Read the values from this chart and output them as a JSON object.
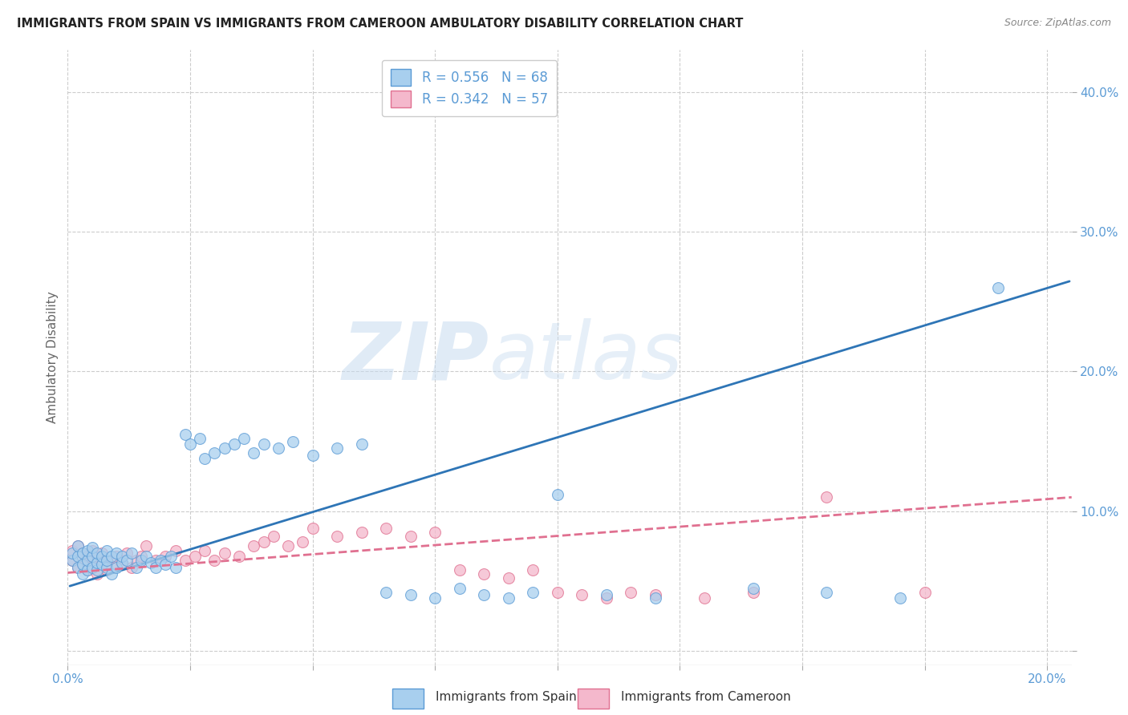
{
  "title": "IMMIGRANTS FROM SPAIN VS IMMIGRANTS FROM CAMEROON AMBULATORY DISABILITY CORRELATION CHART",
  "source": "Source: ZipAtlas.com",
  "ylabel": "Ambulatory Disability",
  "xlim": [
    0.0,
    0.205
  ],
  "ylim": [
    -0.01,
    0.43
  ],
  "xticks": [
    0.0,
    0.025,
    0.05,
    0.075,
    0.1,
    0.125,
    0.15,
    0.175,
    0.2
  ],
  "yticks_right": [
    0.0,
    0.1,
    0.2,
    0.3,
    0.4
  ],
  "ytick_labels_right": [
    "",
    "10.0%",
    "20.0%",
    "30.0%",
    "40.0%"
  ],
  "spain_R": 0.556,
  "spain_N": 68,
  "cameroon_R": 0.342,
  "cameroon_N": 57,
  "spain_color": "#A8CFEE",
  "cameroon_color": "#F4B8CC",
  "spain_edge_color": "#5B9BD5",
  "cameroon_edge_color": "#E07090",
  "spain_line_color": "#2E75B6",
  "cameroon_line_color": "#E07090",
  "legend_label_spain": "Immigrants from Spain",
  "legend_label_cameroon": "Immigrants from Cameroon",
  "watermark_zip": "ZIP",
  "watermark_atlas": "atlas",
  "background_color": "#FFFFFF",
  "grid_color": "#CCCCCC",
  "axis_label_color": "#5B9BD5",
  "title_color": "#222222",
  "spain_x": [
    0.001,
    0.001,
    0.002,
    0.002,
    0.002,
    0.003,
    0.003,
    0.003,
    0.004,
    0.004,
    0.004,
    0.005,
    0.005,
    0.005,
    0.006,
    0.006,
    0.006,
    0.007,
    0.007,
    0.008,
    0.008,
    0.008,
    0.009,
    0.009,
    0.01,
    0.01,
    0.011,
    0.011,
    0.012,
    0.013,
    0.014,
    0.015,
    0.016,
    0.017,
    0.018,
    0.019,
    0.02,
    0.021,
    0.022,
    0.024,
    0.025,
    0.027,
    0.028,
    0.03,
    0.032,
    0.034,
    0.036,
    0.038,
    0.04,
    0.043,
    0.046,
    0.05,
    0.055,
    0.06,
    0.065,
    0.07,
    0.075,
    0.08,
    0.085,
    0.09,
    0.095,
    0.1,
    0.11,
    0.12,
    0.14,
    0.155,
    0.17,
    0.19
  ],
  "spain_y": [
    0.065,
    0.07,
    0.06,
    0.068,
    0.075,
    0.055,
    0.062,
    0.07,
    0.058,
    0.065,
    0.072,
    0.06,
    0.068,
    0.074,
    0.058,
    0.063,
    0.07,
    0.062,
    0.068,
    0.06,
    0.065,
    0.072,
    0.055,
    0.068,
    0.06,
    0.07,
    0.063,
    0.068,
    0.065,
    0.07,
    0.06,
    0.065,
    0.068,
    0.063,
    0.06,
    0.065,
    0.062,
    0.068,
    0.06,
    0.155,
    0.148,
    0.152,
    0.138,
    0.142,
    0.145,
    0.148,
    0.152,
    0.142,
    0.148,
    0.145,
    0.15,
    0.14,
    0.145,
    0.148,
    0.042,
    0.04,
    0.038,
    0.045,
    0.04,
    0.038,
    0.042,
    0.112,
    0.04,
    0.038,
    0.045,
    0.042,
    0.038,
    0.26
  ],
  "cameroon_x": [
    0.001,
    0.001,
    0.002,
    0.002,
    0.003,
    0.003,
    0.004,
    0.004,
    0.005,
    0.005,
    0.006,
    0.006,
    0.007,
    0.007,
    0.008,
    0.008,
    0.009,
    0.01,
    0.011,
    0.012,
    0.013,
    0.014,
    0.015,
    0.016,
    0.018,
    0.02,
    0.022,
    0.024,
    0.026,
    0.028,
    0.03,
    0.032,
    0.035,
    0.038,
    0.04,
    0.042,
    0.045,
    0.048,
    0.05,
    0.055,
    0.06,
    0.065,
    0.07,
    0.075,
    0.08,
    0.085,
    0.09,
    0.095,
    0.1,
    0.105,
    0.11,
    0.115,
    0.12,
    0.13,
    0.14,
    0.155,
    0.175
  ],
  "cameroon_y": [
    0.065,
    0.072,
    0.06,
    0.075,
    0.062,
    0.07,
    0.058,
    0.068,
    0.06,
    0.072,
    0.055,
    0.068,
    0.062,
    0.07,
    0.058,
    0.065,
    0.06,
    0.068,
    0.063,
    0.07,
    0.06,
    0.065,
    0.068,
    0.075,
    0.065,
    0.068,
    0.072,
    0.065,
    0.068,
    0.072,
    0.065,
    0.07,
    0.068,
    0.075,
    0.078,
    0.082,
    0.075,
    0.078,
    0.088,
    0.082,
    0.085,
    0.088,
    0.082,
    0.085,
    0.058,
    0.055,
    0.052,
    0.058,
    0.042,
    0.04,
    0.038,
    0.042,
    0.04,
    0.038,
    0.042,
    0.11,
    0.042
  ],
  "trend_spain_x0": 0.0,
  "trend_spain_y0": 0.046,
  "trend_spain_x1": 0.205,
  "trend_spain_y1": 0.265,
  "trend_cam_x0": 0.0,
  "trend_cam_y0": 0.056,
  "trend_cam_x1": 0.205,
  "trend_cam_y1": 0.11
}
